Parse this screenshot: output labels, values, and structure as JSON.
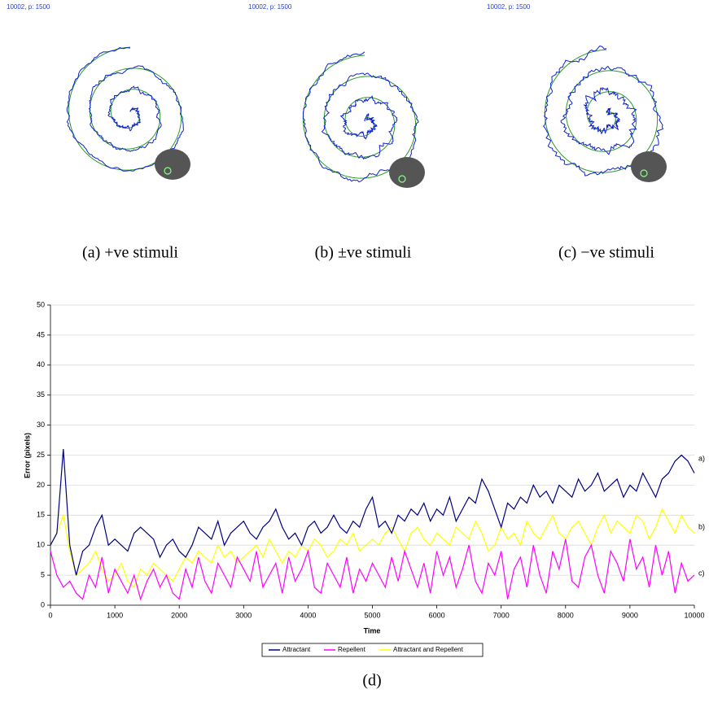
{
  "panels": [
    {
      "label": "10002,  p: 1500",
      "caption": "(a) +ve stimuli"
    },
    {
      "label": "10002,  p: 1500",
      "caption": "(b) ±ve stimuli"
    },
    {
      "label": "10002,  p: 1500",
      "caption": "(c) −ve stimuli"
    }
  ],
  "chart_data": {
    "type": "line",
    "caption": "(d)",
    "x_label": "Time",
    "y_label": "Error (pixels)",
    "x": [
      0,
      100,
      200,
      300,
      400,
      500,
      600,
      700,
      800,
      900,
      1000,
      1100,
      1200,
      1300,
      1400,
      1500,
      1600,
      1700,
      1800,
      1900,
      2000,
      2100,
      2200,
      2300,
      2400,
      2500,
      2600,
      2700,
      2800,
      2900,
      3000,
      3100,
      3200,
      3300,
      3400,
      3500,
      3600,
      3700,
      3800,
      3900,
      4000,
      4100,
      4200,
      4300,
      4400,
      4500,
      4600,
      4700,
      4800,
      4900,
      5000,
      5100,
      5200,
      5300,
      5400,
      5500,
      5600,
      5700,
      5800,
      5900,
      6000,
      6100,
      6200,
      6300,
      6400,
      6500,
      6600,
      6700,
      6800,
      6900,
      7000,
      7100,
      7200,
      7300,
      7400,
      7500,
      7600,
      7700,
      7800,
      7900,
      8000,
      8100,
      8200,
      8300,
      8400,
      8500,
      8600,
      8700,
      8800,
      8900,
      9000,
      9100,
      9200,
      9300,
      9400,
      9500,
      9600,
      9700,
      9800,
      9900,
      10000
    ],
    "series": [
      {
        "name": "Attractant",
        "color": "#000080",
        "values": [
          10,
          12,
          26,
          10,
          5,
          9,
          10,
          13,
          15,
          10,
          11,
          10,
          9,
          12,
          13,
          12,
          11,
          8,
          10,
          11,
          9,
          8,
          10,
          13,
          12,
          11,
          14,
          10,
          12,
          13,
          14,
          12,
          11,
          13,
          14,
          16,
          13,
          11,
          12,
          10,
          13,
          14,
          12,
          13,
          15,
          13,
          12,
          14,
          13,
          16,
          18,
          13,
          14,
          12,
          15,
          14,
          16,
          15,
          17,
          14,
          16,
          15,
          18,
          14,
          16,
          18,
          17,
          21,
          19,
          16,
          13,
          17,
          16,
          18,
          17,
          20,
          18,
          19,
          17,
          20,
          19,
          18,
          21,
          19,
          20,
          22,
          19,
          20,
          21,
          18,
          20,
          19,
          22,
          20,
          18,
          21,
          22,
          24,
          25,
          24,
          22
        ]
      },
      {
        "name": "Repellent",
        "color": "#ff00ff",
        "values": [
          9,
          5,
          3,
          4,
          2,
          1,
          5,
          3,
          8,
          2,
          6,
          4,
          2,
          5,
          1,
          4,
          6,
          3,
          5,
          2,
          1,
          6,
          3,
          8,
          4,
          2,
          7,
          5,
          3,
          8,
          6,
          4,
          9,
          3,
          5,
          7,
          2,
          8,
          4,
          6,
          9,
          3,
          2,
          7,
          5,
          3,
          8,
          2,
          6,
          4,
          7,
          5,
          3,
          8,
          4,
          9,
          6,
          3,
          7,
          2,
          9,
          5,
          8,
          3,
          6,
          10,
          4,
          2,
          7,
          5,
          9,
          1,
          6,
          8,
          3,
          10,
          5,
          2,
          9,
          6,
          11,
          4,
          3,
          8,
          10,
          5,
          2,
          9,
          7,
          4,
          11,
          6,
          8,
          3,
          10,
          5,
          9,
          2,
          7,
          4,
          5
        ]
      },
      {
        "name": "Attractant and Repellent",
        "color": "#ffff00",
        "values": [
          10,
          12,
          15,
          9,
          5,
          6,
          7,
          9,
          6,
          4,
          5,
          7,
          4,
          3,
          6,
          5,
          7,
          6,
          5,
          4,
          6,
          8,
          7,
          9,
          8,
          7,
          10,
          8,
          9,
          7,
          8,
          9,
          10,
          8,
          11,
          9,
          7,
          9,
          8,
          10,
          9,
          11,
          10,
          8,
          9,
          11,
          10,
          12,
          9,
          10,
          11,
          10,
          12,
          13,
          11,
          9,
          12,
          13,
          11,
          10,
          12,
          11,
          10,
          13,
          12,
          11,
          14,
          12,
          9,
          10,
          13,
          11,
          12,
          10,
          14,
          12,
          11,
          13,
          15,
          12,
          11,
          13,
          14,
          12,
          10,
          13,
          15,
          12,
          14,
          13,
          12,
          15,
          14,
          11,
          13,
          16,
          14,
          12,
          15,
          13,
          12
        ]
      }
    ],
    "annotations": [
      "a)",
      "b)",
      "c)"
    ],
    "xlim": [
      0,
      10000
    ],
    "xticks": [
      0,
      1000,
      2000,
      3000,
      4000,
      5000,
      6000,
      7000,
      8000,
      9000,
      10000
    ],
    "ylim": [
      0,
      50
    ],
    "yticks": [
      0,
      5,
      10,
      15,
      20,
      25,
      30,
      35,
      40,
      45,
      50
    ],
    "grid": true,
    "legend": "bottom"
  }
}
